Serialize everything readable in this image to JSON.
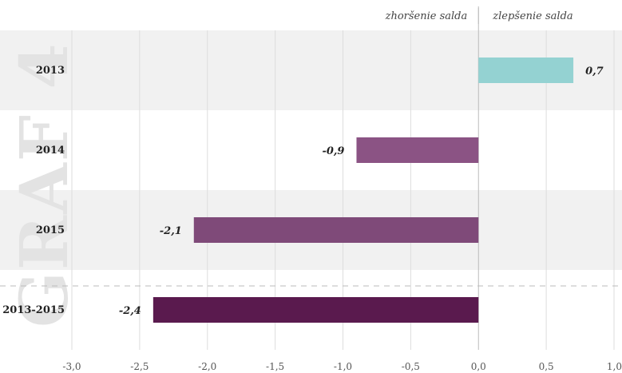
{
  "chart_data": {
    "type": "bar",
    "orientation": "horizontal",
    "categories": [
      "2013",
      "2014",
      "2015",
      "2013-2015"
    ],
    "values": [
      0.7,
      -0.9,
      -2.1,
      -2.4
    ],
    "value_labels": [
      "0,7",
      "-0,9",
      "-2,1",
      "-2,4"
    ],
    "bar_colors": [
      "#94d2d2",
      "#8b5384",
      "#7f4a79",
      "#5a1a4e"
    ],
    "xlim": [
      -3.0,
      1.0
    ],
    "x_ticks": [
      -3.0,
      -2.5,
      -2.0,
      -1.5,
      -1.0,
      -0.5,
      0.0,
      0.5,
      1.0
    ],
    "x_tick_labels": [
      "-3,0",
      "-2,5",
      "-2,0",
      "-1,5",
      "-1,0",
      "-0,5",
      "0,0",
      "0,5",
      "1,0"
    ],
    "left_side_label": "zhoršenie salda",
    "right_side_label": "zlepšenie salda",
    "watermark": "GRAF 4",
    "grid": true,
    "row_shading": [
      "#f1f1f1",
      "#ffffff",
      "#f1f1f1",
      "#ffffff"
    ]
  }
}
